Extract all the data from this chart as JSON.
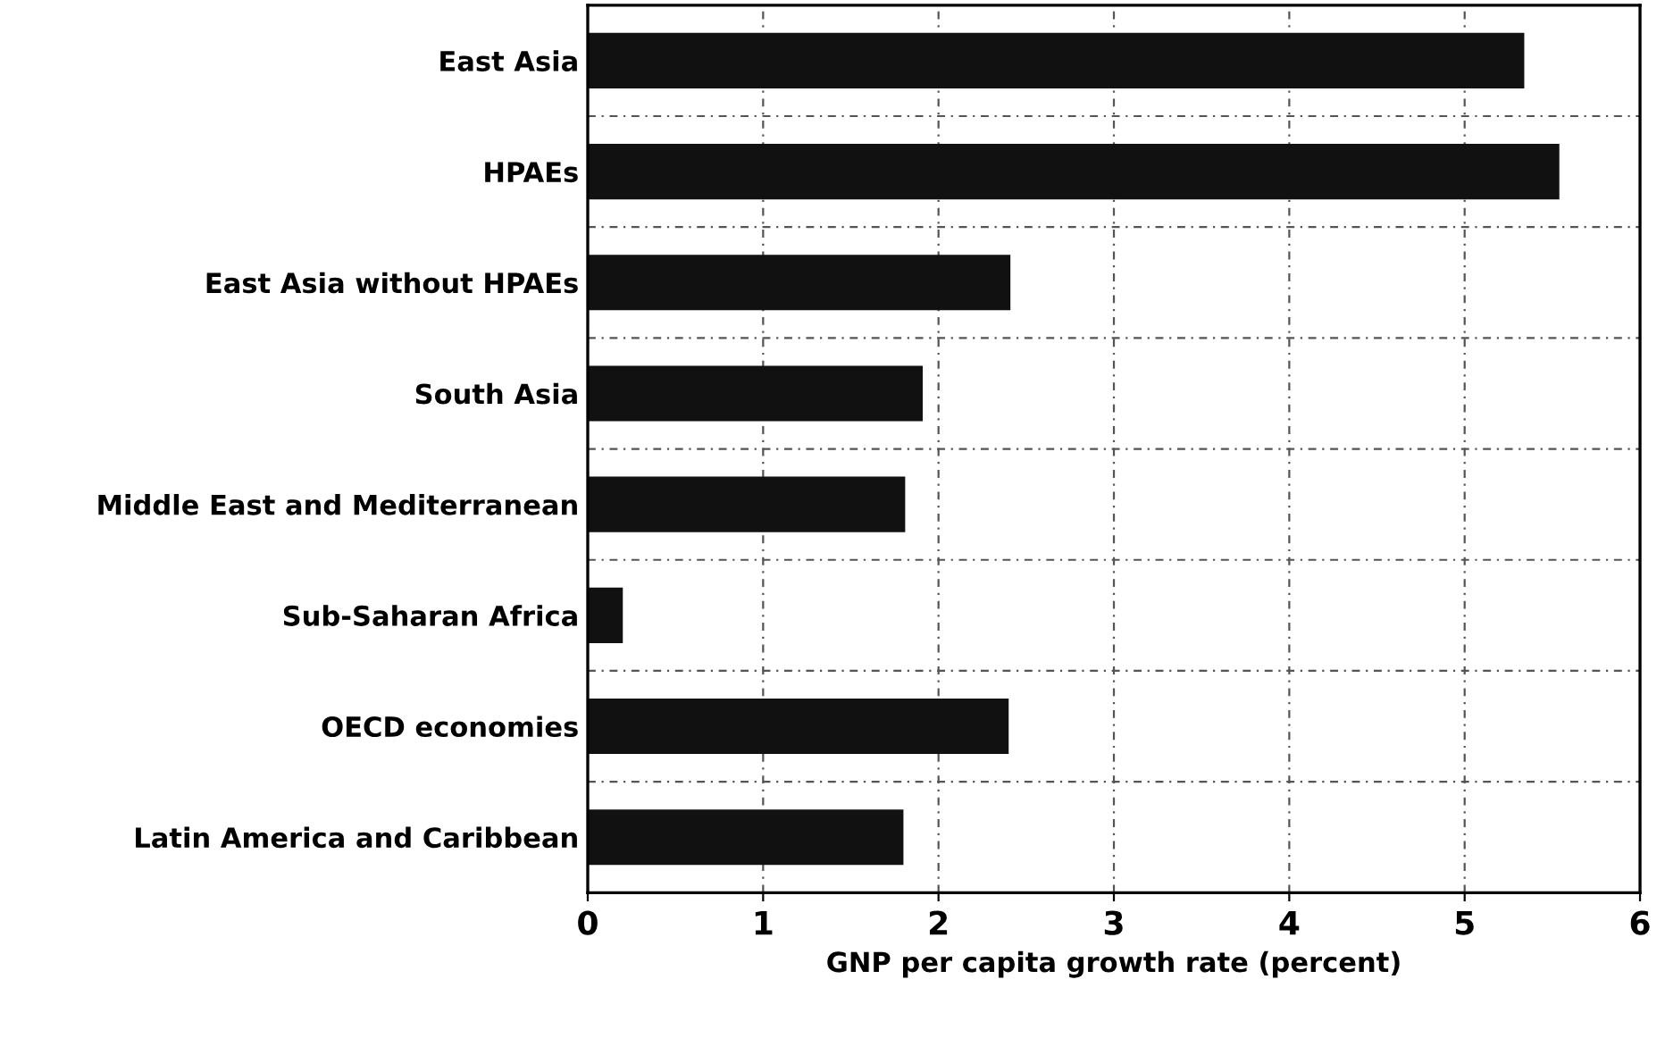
{
  "chart_data": {
    "type": "bar",
    "orientation": "horizontal",
    "xlabel": "GNP per capita growth rate (percent)",
    "categories": [
      "East Asia",
      "HPAEs",
      "East Asia without HPAEs",
      "South Asia",
      "Middle East and Mediterranean",
      "Sub-Saharan Africa",
      "OECD economies",
      "Latin America and Caribbean"
    ],
    "values": [
      5.34,
      5.54,
      2.41,
      1.91,
      1.81,
      0.2,
      2.4,
      1.8
    ],
    "color": "#111111",
    "xlim": [
      0,
      6
    ],
    "xticks": [
      0,
      1,
      2,
      3,
      4,
      5,
      6
    ],
    "grid": true
  }
}
